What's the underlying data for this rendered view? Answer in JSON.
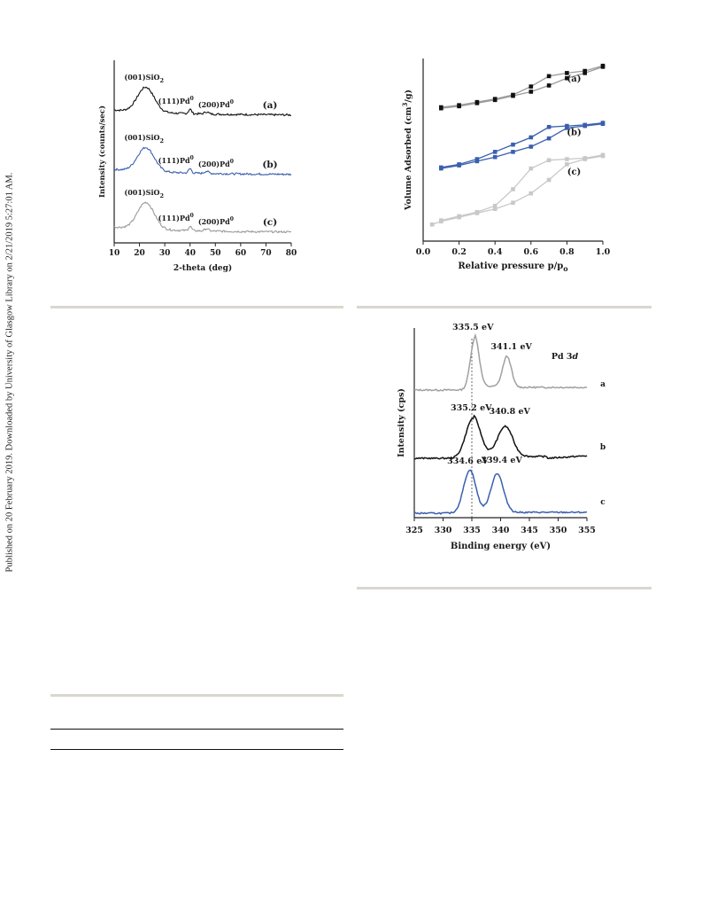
{
  "side_note": "Published on 20 February 2019. Downloaded by University of Glasgow Library on 2/21/2019 5:27:01 AM.",
  "chart_data": [
    {
      "type": "line",
      "xlabel": "2-theta (deg)",
      "ylabel": "Intensity (counts/sec)",
      "xlim": [
        10,
        80
      ],
      "xticks": [
        10,
        20,
        30,
        40,
        50,
        60,
        70,
        80
      ],
      "colors": [
        "#111111",
        "#3a5fae",
        "#9a9a9a"
      ],
      "series": [
        {
          "name": "(a)",
          "peaks": [
            {
              "label": "(001)SiO",
              "sub": "2",
              "sup": "",
              "x": 22
            },
            {
              "label": "(111)Pd",
              "sub": "",
              "sup": "0",
              "x": 40
            },
            {
              "label": "(200)Pd",
              "sub": "",
              "sup": "0",
              "x": 46
            }
          ]
        },
        {
          "name": "(b)",
          "peaks": [
            {
              "label": "(001)SiO",
              "sub": "2",
              "sup": "",
              "x": 22
            },
            {
              "label": "(111)Pd",
              "sub": "",
              "sup": "0",
              "x": 40
            },
            {
              "label": "(200)Pd",
              "sub": "",
              "sup": "0",
              "x": 46
            }
          ]
        },
        {
          "name": "(c)",
          "peaks": [
            {
              "label": "(001)SiO",
              "sub": "2",
              "sup": "",
              "x": 22
            },
            {
              "label": "(111)Pd",
              "sub": "",
              "sup": "0",
              "x": 40
            },
            {
              "label": "(200)Pd",
              "sub": "",
              "sup": "0",
              "x": 46
            }
          ]
        }
      ]
    },
    {
      "type": "line",
      "xlabel": "Relative pressure p/p",
      "xlabel_sub": "o",
      "ylabel": "Volume Adsorbed (cm",
      "ylabel_sup": "3",
      "ylabel_end": "/g)",
      "xlim": [
        0.0,
        1.0
      ],
      "xticks": [
        "0.0",
        "0.2",
        "0.4",
        "0.6",
        "0.8",
        "1.0"
      ],
      "series": [
        {
          "name": "(a)",
          "color": "#111111",
          "line": "#9a9a9a",
          "marker": "#111111",
          "adsorption": {
            "x": [
              0.1,
              0.2,
              0.3,
              0.4,
              0.5,
              0.6,
              0.7,
              0.8,
              0.9,
              1.0
            ],
            "y": [
              7.9,
              8.0,
              8.15,
              8.3,
              8.5,
              8.7,
              9.0,
              9.35,
              9.6,
              9.9
            ]
          },
          "desorption": {
            "x": [
              1.0,
              0.9,
              0.8,
              0.7,
              0.6,
              0.5,
              0.4,
              0.3,
              0.2,
              0.1
            ],
            "y": [
              9.95,
              9.7,
              9.6,
              9.45,
              8.95,
              8.55,
              8.35,
              8.2,
              8.05,
              7.95
            ]
          }
        },
        {
          "name": "(b)",
          "color": "#3a5fae",
          "line": "#3a5fae",
          "marker": "#3a5fae",
          "adsorption": {
            "x": [
              0.1,
              0.2,
              0.3,
              0.4,
              0.5,
              0.6,
              0.7,
              0.8,
              0.9,
              1.0
            ],
            "y": [
              5.0,
              5.15,
              5.35,
              5.55,
              5.8,
              6.05,
              6.45,
              6.95,
              7.05,
              7.15
            ]
          },
          "desorption": {
            "x": [
              1.0,
              0.9,
              0.8,
              0.7,
              0.6,
              0.5,
              0.4,
              0.3,
              0.2,
              0.1
            ],
            "y": [
              7.2,
              7.1,
              7.05,
              7.0,
              6.5,
              6.15,
              5.8,
              5.45,
              5.2,
              5.05
            ]
          }
        },
        {
          "name": "(c)",
          "color": "#c8c8c8",
          "line": "#c8c8c8",
          "marker": "#c8c8c8",
          "adsorption": {
            "x": [
              0.05,
              0.1,
              0.2,
              0.3,
              0.4,
              0.5,
              0.6,
              0.7,
              0.8,
              0.9,
              1.0
            ],
            "y": [
              2.3,
              2.45,
              2.65,
              2.85,
              3.05,
              3.35,
              3.8,
              4.45,
              5.2,
              5.45,
              5.6
            ]
          },
          "desorption": {
            "x": [
              1.0,
              0.9,
              0.8,
              0.7,
              0.6,
              0.5,
              0.4,
              0.3,
              0.2,
              0.1
            ],
            "y": [
              5.65,
              5.5,
              5.45,
              5.4,
              5.0,
              4.0,
              3.2,
              2.9,
              2.7,
              2.5
            ]
          }
        }
      ]
    },
    {
      "type": "line",
      "xlabel": "Binding energy (eV)",
      "ylabel": "Intensity (cps)",
      "xlim": [
        325,
        355
      ],
      "xticks": [
        325,
        330,
        335,
        340,
        345,
        350,
        355
      ],
      "guide_x": 335,
      "title": "Pd 3",
      "title_italic": "d",
      "series": [
        {
          "name": "a",
          "color": "#a0a0a0",
          "peaks": [
            {
              "x": 335.5,
              "label": "335.5 eV"
            },
            {
              "x": 341.1,
              "label": "341.1 eV"
            }
          ]
        },
        {
          "name": "b",
          "color": "#111111",
          "peaks": [
            {
              "x": 335.2,
              "label": "335.2 eV"
            },
            {
              "x": 340.8,
              "label": "340.8 eV"
            }
          ]
        },
        {
          "name": "c",
          "color": "#3a5fae",
          "peaks": [
            {
              "x": 334.6,
              "label": "334.6 eV"
            },
            {
              "x": 339.4,
              "label": "339.4 eV"
            }
          ]
        }
      ]
    }
  ]
}
